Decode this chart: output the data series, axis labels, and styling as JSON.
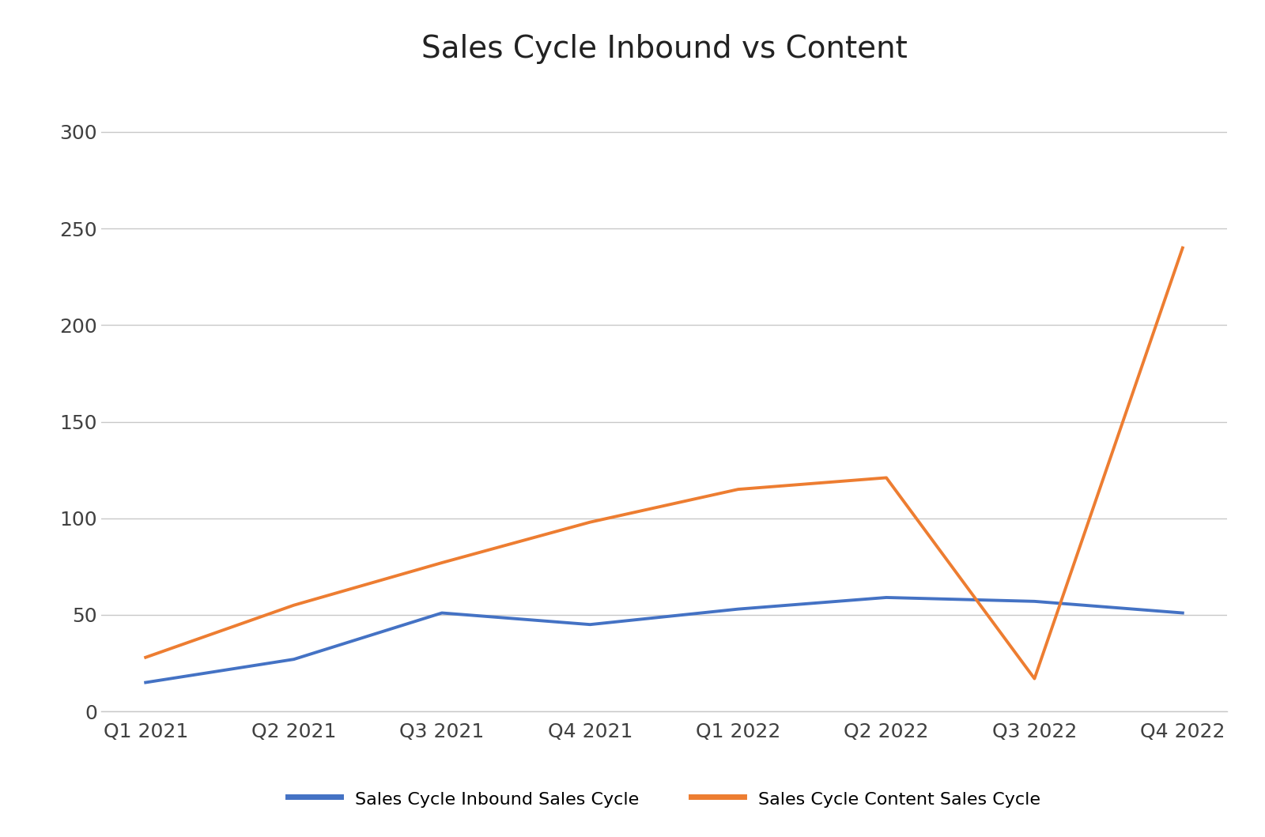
{
  "title": "Sales Cycle Inbound vs Content",
  "categories": [
    "Q1 2021",
    "Q2 2021",
    "Q3 2021",
    "Q4 2021",
    "Q1 2022",
    "Q2 2022",
    "Q3 2022",
    "Q4 2022"
  ],
  "inbound": [
    15,
    27,
    51,
    45,
    53,
    59,
    57,
    51
  ],
  "content": [
    28,
    55,
    77,
    98,
    115,
    121,
    17,
    240
  ],
  "inbound_color": "#4472C4",
  "content_color": "#ED7D31",
  "inbound_label": "Sales Cycle Inbound Sales Cycle",
  "content_label": "Sales Cycle Content Sales Cycle",
  "ylim": [
    0,
    325
  ],
  "yticks": [
    0,
    50,
    100,
    150,
    200,
    250,
    300
  ],
  "title_fontsize": 28,
  "tick_fontsize": 18,
  "legend_fontsize": 16,
  "line_width": 2.8,
  "background_color": "#ffffff",
  "grid_color": "#c8c8c8"
}
